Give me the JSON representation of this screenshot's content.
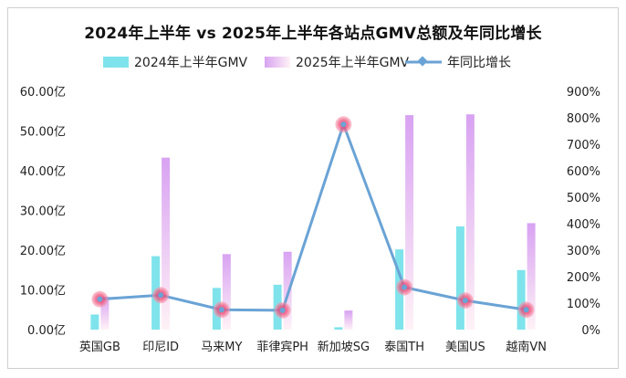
{
  "chart_data": {
    "type": "bar",
    "title": "2024年上半年 vs 2025年上半年各站点GMV总额及年同比增长",
    "categories": [
      "英国GB",
      "印尼ID",
      "马来MY",
      "菲律宾PH",
      "新加坡SG",
      "泰国TH",
      "美国US",
      "越南VN"
    ],
    "series": [
      {
        "name": "2024年上半年GMV",
        "kind": "bar",
        "axis": "left",
        "values": [
          3.8,
          18.5,
          10.5,
          11.3,
          0.6,
          20.2,
          26.0,
          15.0
        ]
      },
      {
        "name": "2025年上半年GMV",
        "kind": "bar",
        "axis": "left",
        "values": [
          8.3,
          43.3,
          19.0,
          19.6,
          4.8,
          54.0,
          54.2,
          26.8
        ]
      },
      {
        "name": "年同比增长",
        "kind": "line",
        "axis": "right",
        "values": [
          115,
          130,
          75,
          73,
          775,
          160,
          110,
          75
        ]
      }
    ],
    "y_left": {
      "min": 0,
      "max": 60,
      "step": 10,
      "tick_labels": [
        "0.00亿",
        "10.00亿",
        "20.00亿",
        "30.00亿",
        "40.00亿",
        "50.00亿",
        "60.00亿"
      ]
    },
    "y_right": {
      "min": 0,
      "max": 900,
      "step": 100,
      "tick_labels": [
        "0%",
        "100%",
        "200%",
        "300%",
        "400%",
        "500%",
        "600%",
        "700%",
        "800%",
        "900%"
      ]
    },
    "legend": {
      "placement": "top-center"
    },
    "grid": false,
    "colors": {
      "bar2024": "#7fe3ec",
      "bar2025_top": "#d9a6f2",
      "bar2025_bottom": "#fff0f8",
      "line": "#6aa3d5",
      "marker": "#f05a7e"
    }
  }
}
